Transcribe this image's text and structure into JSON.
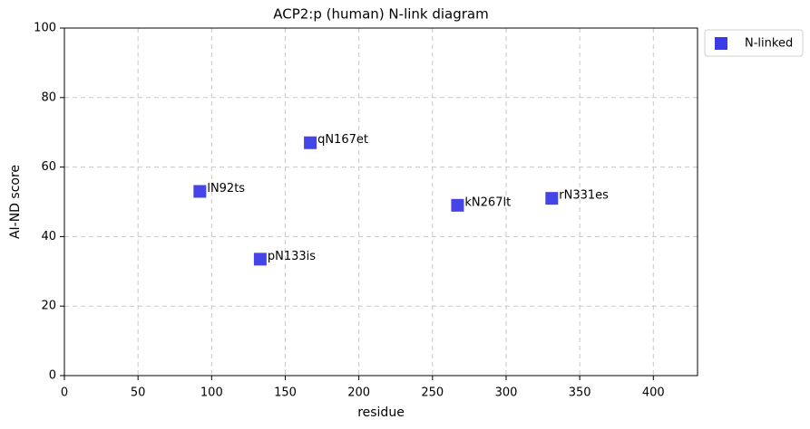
{
  "chart_data": {
    "type": "scatter",
    "title": "ACP2:p (human) N-link diagram",
    "xlabel": "residue",
    "ylabel": "AI-ND score",
    "series": [
      {
        "name": "N-linked",
        "color": "#3b3be6",
        "x": [
          92,
          133,
          167,
          267,
          331
        ],
        "values": [
          53,
          33.5,
          67,
          49,
          51
        ],
        "labels": [
          "lN92ts",
          "pN133is",
          "qN167et",
          "kN267lt",
          "rN331es"
        ]
      }
    ],
    "xlim": [
      0,
      430
    ],
    "xticks": [
      0,
      50,
      100,
      150,
      200,
      250,
      300,
      350,
      400
    ],
    "ylim": [
      0,
      100
    ],
    "yticks": [
      0,
      20,
      40,
      60,
      80,
      100
    ],
    "grid": true,
    "legend": "outside-upper-right"
  }
}
